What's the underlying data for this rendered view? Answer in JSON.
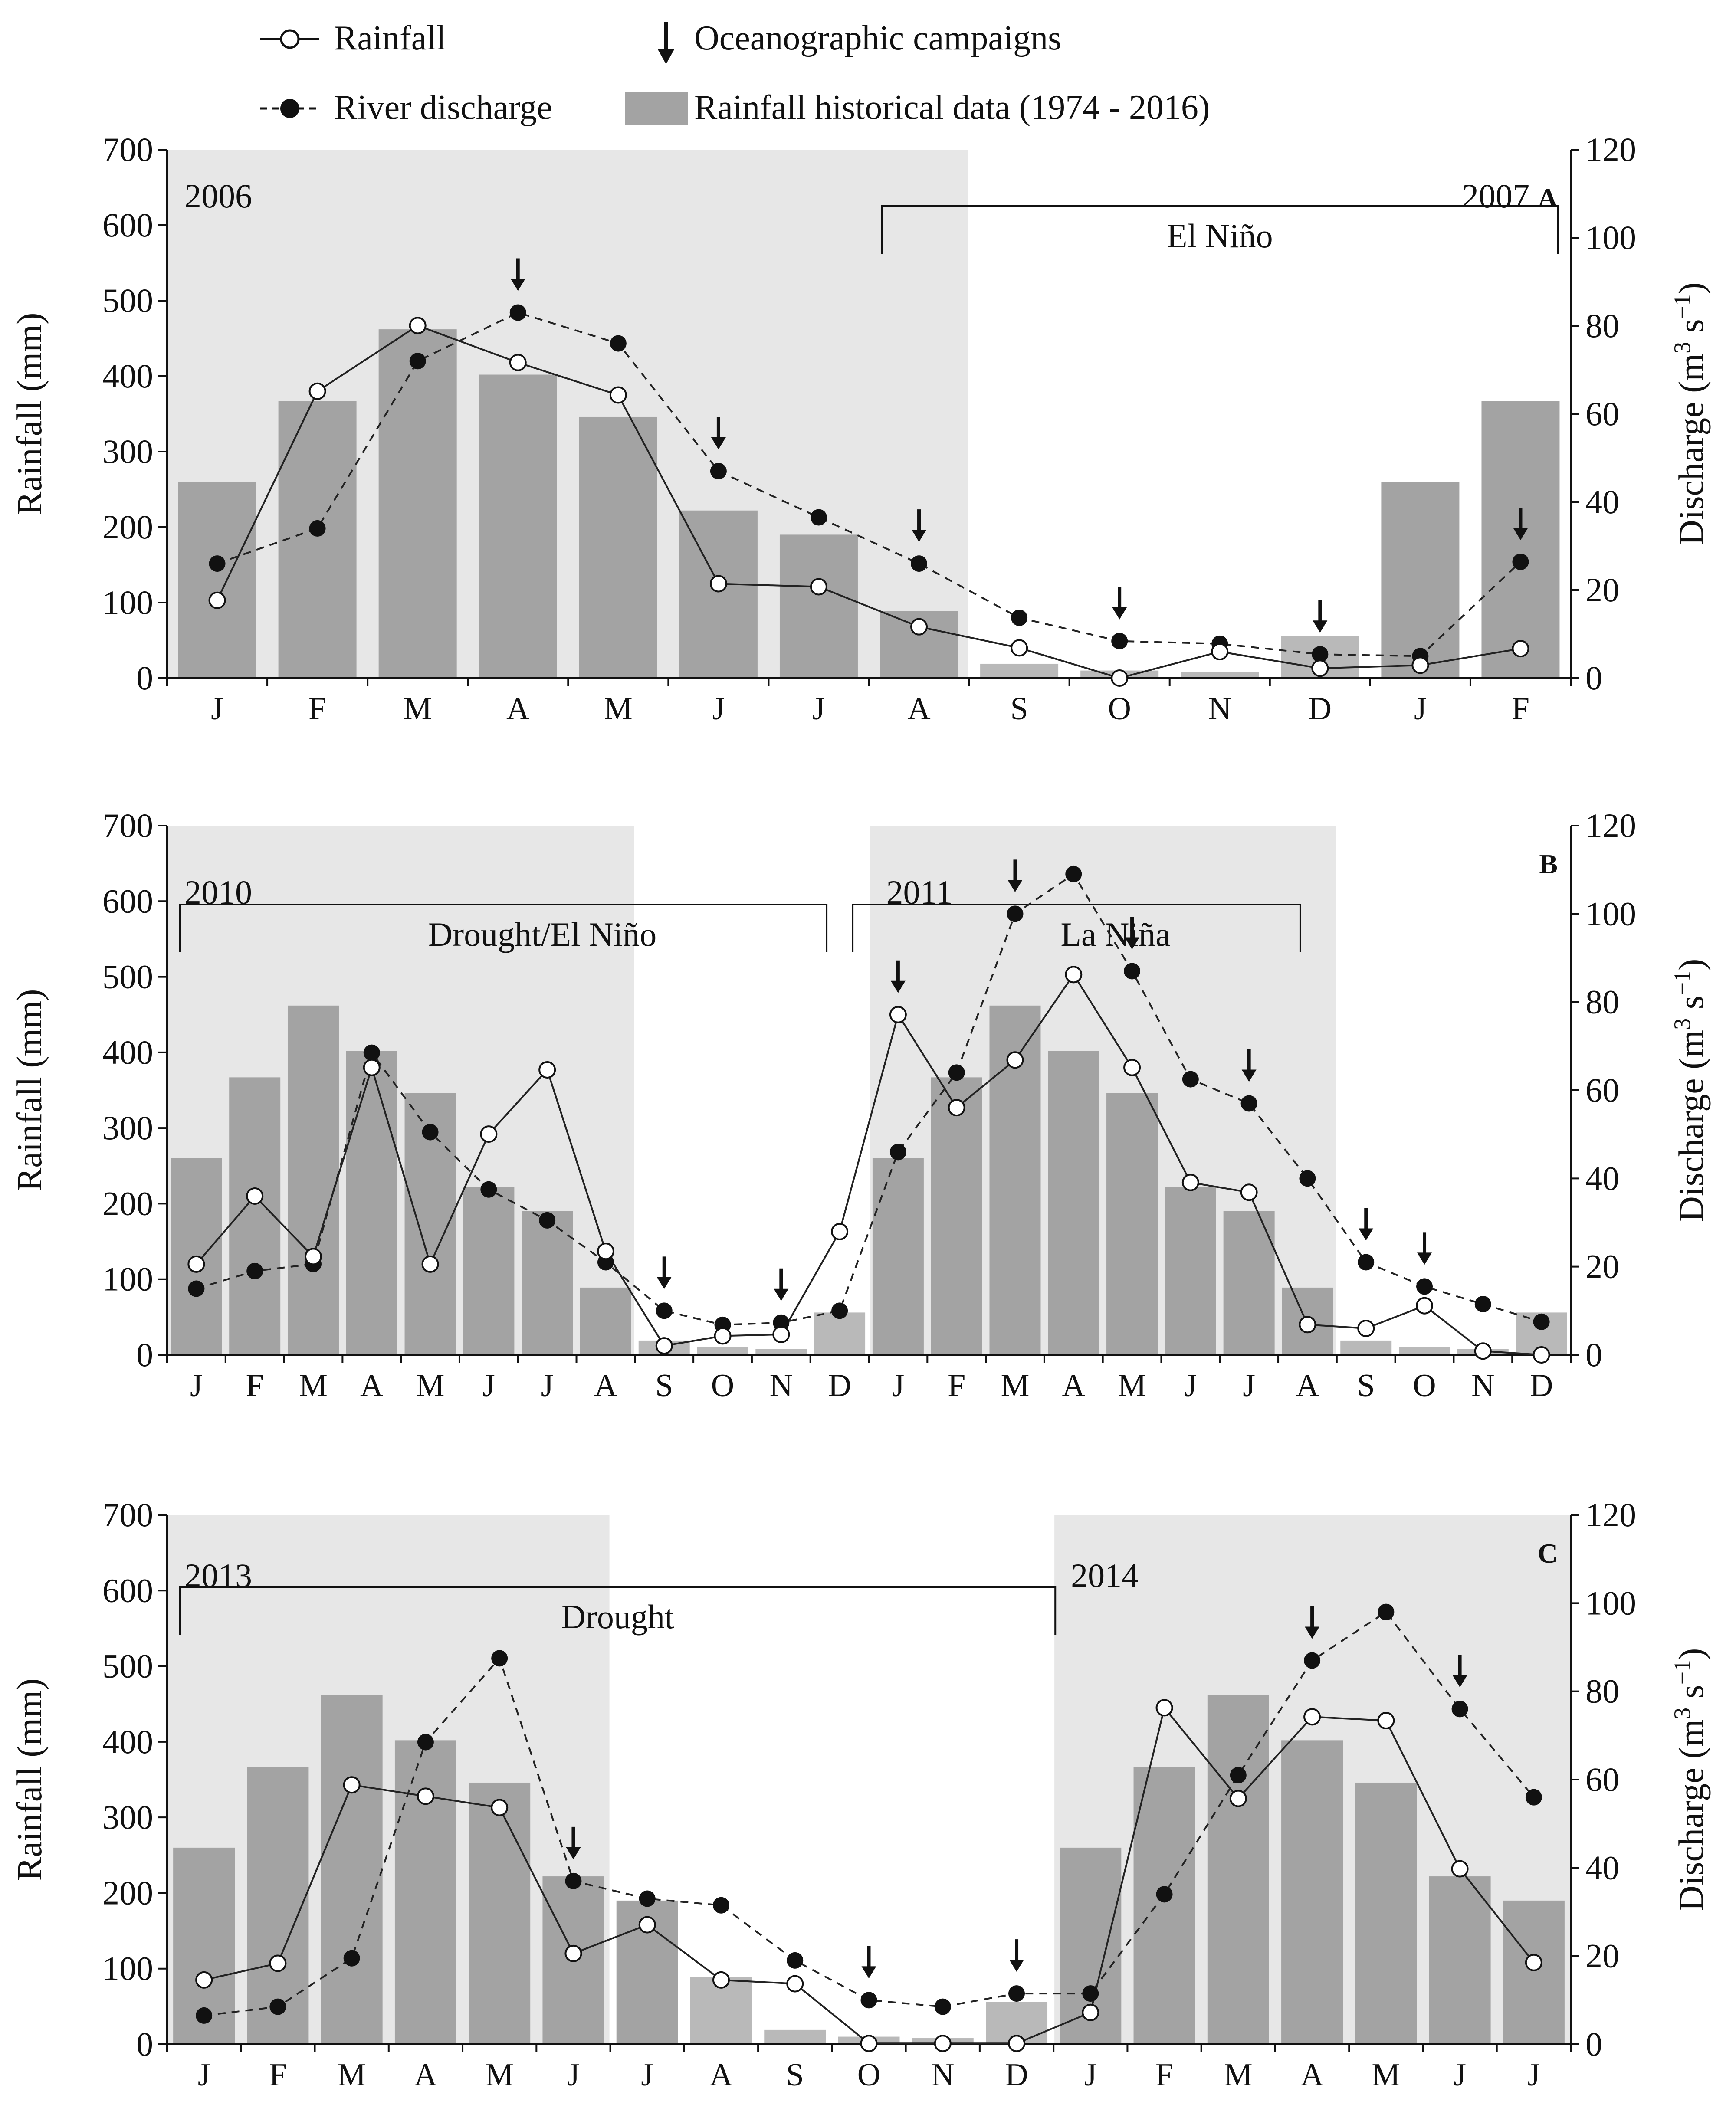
{
  "legend": {
    "rainfall": "Rainfall",
    "discharge": "River discharge",
    "campaigns": "Oceanographic campaigns",
    "historical": "Rainfall historical data (1974 - 2016)"
  },
  "colors": {
    "bar_dark": "#a3a3a3",
    "bar_light": "#b9b9b9",
    "shade": "#e7e7e7",
    "ink": "#111111"
  },
  "chart_data": [
    {
      "type": "bar+line",
      "panel": "A",
      "ylabel_left": "Rainfall (mm)",
      "ylabel_right_main": "Discharge (m",
      "ylabel_right_sup1": "3",
      "ylabel_right_mid": " s",
      "ylabel_right_sup2": "−1",
      "ylabel_right_end": ")",
      "ylim_left": [
        0,
        700
      ],
      "ylim_right": [
        0,
        120
      ],
      "yticks_left": [
        "0",
        "100",
        "200",
        "300",
        "400",
        "500",
        "600",
        "700"
      ],
      "yticks_right": [
        "0",
        "20",
        "40",
        "60",
        "80",
        "100",
        "120"
      ],
      "categories": [
        "J",
        "F",
        "M",
        "A",
        "M",
        "J",
        "J",
        "A",
        "S",
        "O",
        "N",
        "D",
        "J",
        "F"
      ],
      "historical": [
        260,
        367,
        462,
        402,
        346,
        222,
        190,
        89,
        19,
        10,
        8,
        56,
        260,
        367
      ],
      "rainfall": [
        103,
        380,
        467,
        418,
        375,
        125,
        121,
        68,
        40,
        0,
        35,
        13,
        17,
        39
      ],
      "discharge": [
        26,
        34,
        72,
        83,
        76,
        47,
        36.5,
        26,
        13.7,
        8.4,
        7.8,
        5.4,
        5,
        26.4
      ],
      "campaigns": [
        3,
        5,
        7,
        9,
        11,
        13
      ],
      "shade": [
        [
          0,
          7
        ]
      ],
      "years": [
        {
          "label": "2006",
          "month": 0,
          "align": "start"
        },
        {
          "label": "2007",
          "month": 13,
          "align": "end"
        }
      ],
      "events": [
        {
          "label": "El Niño",
          "from": 7,
          "to": 13
        }
      ],
      "letter": "A"
    },
    {
      "type": "bar+line",
      "panel": "B",
      "ylabel_left": "Rainfall (mm)",
      "ylabel_right_main": "Discharge (m",
      "ylabel_right_sup1": "3",
      "ylabel_right_mid": " s",
      "ylabel_right_sup2": "−1",
      "ylabel_right_end": ")",
      "ylim_left": [
        0,
        700
      ],
      "ylim_right": [
        0,
        120
      ],
      "yticks_left": [
        "0",
        "100",
        "200",
        "300",
        "400",
        "500",
        "600",
        "700"
      ],
      "yticks_right": [
        "0",
        "20",
        "40",
        "60",
        "80",
        "100",
        "120"
      ],
      "categories": [
        "J",
        "F",
        "M",
        "A",
        "M",
        "J",
        "J",
        "A",
        "S",
        "O",
        "N",
        "D",
        "J",
        "F",
        "M",
        "A",
        "M",
        "J",
        "J",
        "A",
        "S",
        "O",
        "N",
        "D"
      ],
      "historical": [
        260,
        367,
        462,
        402,
        346,
        222,
        190,
        89,
        19,
        10,
        8,
        56,
        260,
        367,
        462,
        402,
        346,
        222,
        190,
        89,
        19,
        10,
        8,
        56
      ],
      "rainfall": [
        120,
        210,
        130,
        380,
        120,
        292,
        377,
        137,
        12,
        25,
        27,
        163,
        450,
        327,
        390,
        503,
        380,
        228,
        215,
        40,
        35,
        65,
        5,
        0
      ],
      "discharge": [
        15,
        19,
        20.6,
        68.5,
        50.5,
        37.5,
        30.5,
        21,
        10,
        6.8,
        7.3,
        10,
        46,
        64,
        100,
        109,
        87,
        62.5,
        57,
        40,
        21,
        15.5,
        11.5,
        7.5
      ],
      "campaigns": [
        8,
        10,
        12,
        14,
        16,
        18,
        20,
        21
      ],
      "shade": [
        [
          0,
          7
        ],
        [
          12,
          19
        ]
      ],
      "years": [
        {
          "label": "2010",
          "month": 0,
          "align": "start"
        },
        {
          "label": "2011",
          "month": 12,
          "align": "start"
        }
      ],
      "events": [
        {
          "label": "Drought/El Niño",
          "from": 0,
          "to": 10.5
        },
        {
          "label": "La Niña",
          "from": 11.5,
          "to": 18.6
        }
      ],
      "letter": "B"
    },
    {
      "type": "bar+line",
      "panel": "C",
      "ylabel_left": "Rainfall (mm)",
      "ylabel_right_main": "Discharge (m",
      "ylabel_right_sup1": "3",
      "ylabel_right_mid": " s",
      "ylabel_right_sup2": "−1",
      "ylabel_right_end": ")",
      "ylim_left": [
        0,
        700
      ],
      "ylim_right": [
        0,
        120
      ],
      "yticks_left": [
        "0",
        "100",
        "200",
        "300",
        "400",
        "500",
        "600",
        "700"
      ],
      "yticks_right": [
        "0",
        "20",
        "40",
        "60",
        "80",
        "100",
        "120"
      ],
      "categories": [
        "J",
        "F",
        "M",
        "A",
        "M",
        "J",
        "J",
        "A",
        "S",
        "O",
        "N",
        "D",
        "J",
        "F",
        "M",
        "A",
        "M",
        "J",
        "J"
      ],
      "historical": [
        260,
        367,
        462,
        402,
        346,
        222,
        190,
        89,
        19,
        10,
        8,
        56,
        260,
        367,
        462,
        402,
        346,
        222,
        190
      ],
      "rainfall": [
        85,
        107,
        343,
        328,
        313,
        120,
        158,
        85,
        80,
        1,
        1,
        1,
        42,
        445,
        325,
        433,
        428,
        232,
        108
      ],
      "discharge": [
        6.5,
        8.5,
        19.5,
        68.5,
        87.5,
        37,
        33,
        31.5,
        19,
        10,
        8.5,
        11.5,
        11.5,
        34,
        61,
        87,
        98,
        76,
        56
      ],
      "campaigns": [
        5,
        9,
        11,
        15,
        17
      ],
      "shade": [
        [
          0,
          5
        ],
        [
          12,
          18
        ]
      ],
      "years": [
        {
          "label": "2013",
          "month": 0,
          "align": "start"
        },
        {
          "label": "2014",
          "month": 12,
          "align": "start"
        }
      ],
      "events": [
        {
          "label": "Drought",
          "from": 0,
          "to": 11.2
        }
      ],
      "letter": "C"
    }
  ]
}
